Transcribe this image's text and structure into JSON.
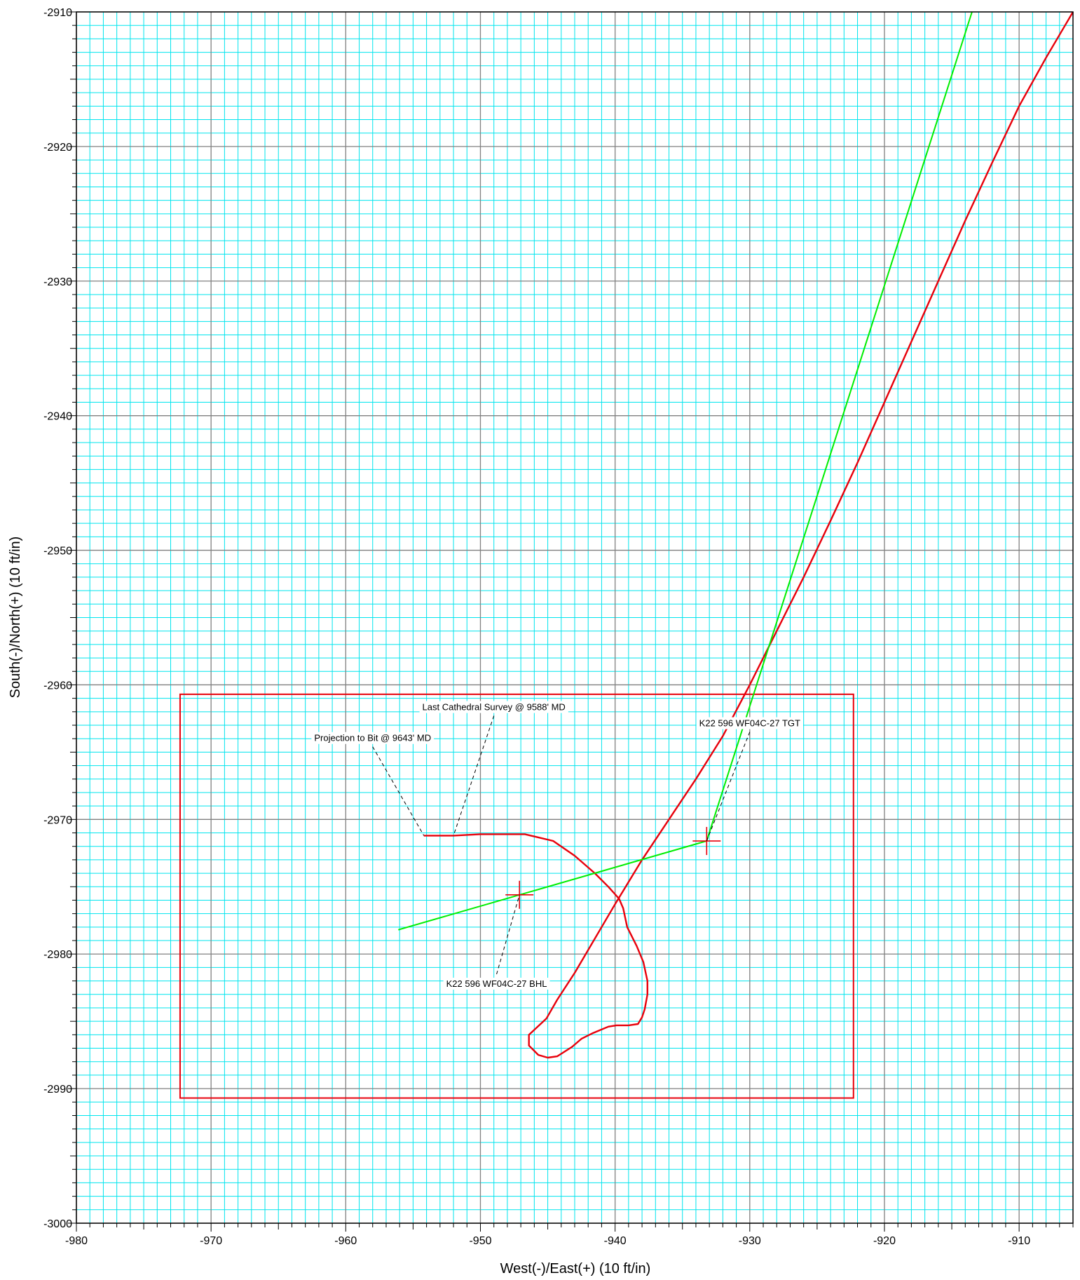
{
  "chart_data": {
    "type": "line",
    "title": "",
    "xlabel": "West(-)/East(+) (10 ft/in)",
    "ylabel": "South(-)/North(+) (10 ft/in)",
    "xlim": [
      -980,
      -906
    ],
    "ylim": [
      -3000,
      -2910
    ],
    "x_ticks": [
      -980,
      -970,
      -960,
      -950,
      -940,
      -930,
      -920,
      -910
    ],
    "y_ticks": [
      -2910,
      -2920,
      -2930,
      -2940,
      -2950,
      -2960,
      -2970,
      -2980,
      -2990,
      -3000
    ],
    "grid": true,
    "colors": {
      "minor_grid": "#00e5ee",
      "major_grid": "#808080",
      "actual": "#e8000b",
      "plan": "#00ee00",
      "box": "#e8000b",
      "target": "#e8000b",
      "leader": "#000000"
    },
    "series": [
      {
        "style": "actual",
        "points": [
          [
            -954.2,
            -2971.2
          ],
          [
            -952.0,
            -2971.2
          ],
          [
            -950.0,
            -2971.1
          ],
          [
            -948.0,
            -2971.1
          ],
          [
            -946.7,
            -2971.1
          ],
          [
            -944.6,
            -2971.6
          ],
          [
            -943.0,
            -2972.7
          ],
          [
            -941.5,
            -2974.0
          ],
          [
            -940.5,
            -2975.0
          ],
          [
            -939.7,
            -2975.9
          ],
          [
            -939.4,
            -2976.6
          ],
          [
            -939.1,
            -2978.0
          ],
          [
            -938.4,
            -2979.4
          ],
          [
            -937.9,
            -2980.6
          ],
          [
            -937.6,
            -2982.0
          ],
          [
            -937.6,
            -2983.0
          ],
          [
            -937.8,
            -2984.1
          ],
          [
            -938.0,
            -2984.7
          ],
          [
            -938.3,
            -2985.2
          ],
          [
            -939.0,
            -2985.3
          ],
          [
            -939.9,
            -2985.3
          ],
          [
            -940.5,
            -2985.4
          ],
          [
            -941.7,
            -2985.9
          ],
          [
            -942.5,
            -2986.3
          ],
          [
            -943.2,
            -2986.9
          ],
          [
            -944.3,
            -2987.6
          ],
          [
            -945.0,
            -2987.7
          ],
          [
            -945.7,
            -2987.5
          ],
          [
            -946.4,
            -2986.8
          ],
          [
            -946.4,
            -2986.0
          ],
          [
            -945.1,
            -2984.8
          ],
          [
            -944.3,
            -2983.4
          ],
          [
            -943.0,
            -2981.4
          ],
          [
            -942.0,
            -2979.7
          ],
          [
            -940.0,
            -2976.3
          ],
          [
            -938.0,
            -2973.0
          ],
          [
            -936.0,
            -2970.0
          ],
          [
            -934.0,
            -2967.0
          ],
          [
            -932.0,
            -2963.8
          ],
          [
            -930.0,
            -2960.0
          ],
          [
            -928.0,
            -2956.0
          ],
          [
            -926.0,
            -2952.0
          ],
          [
            -924.0,
            -2947.8
          ],
          [
            -922.0,
            -2943.5
          ],
          [
            -920.0,
            -2939.0
          ],
          [
            -918.0,
            -2934.5
          ],
          [
            -916.0,
            -2930.0
          ],
          [
            -914.0,
            -2925.5
          ],
          [
            -912.0,
            -2921.2
          ],
          [
            -910.0,
            -2917.0
          ],
          [
            -908.0,
            -2913.4
          ],
          [
            -906.0,
            -2910.0
          ]
        ]
      },
      {
        "style": "plan",
        "points": [
          [
            -913.5,
            -2910.0
          ],
          [
            -933.2,
            -2971.6
          ]
        ]
      },
      {
        "style": "plan",
        "points": [
          [
            -933.2,
            -2971.6
          ],
          [
            -956.1,
            -2978.2
          ]
        ]
      }
    ],
    "target_box": {
      "x": [
        -972.3,
        -922.3
      ],
      "y": [
        -2960.7,
        -2990.7
      ]
    },
    "targets": [
      {
        "x": -933.2,
        "y": -2971.6
      },
      {
        "x": -947.1,
        "y": -2975.6
      }
    ],
    "annotations": [
      {
        "text": "Last Cathedral Survey @ 9588' MD",
        "anchor": [
          -952.0,
          -2971.2
        ],
        "label_at": [
          -949.0,
          -2962.3
        ]
      },
      {
        "text": "Projection to Bit @ 9643' MD",
        "anchor": [
          -954.2,
          -2971.2
        ],
        "label_at": [
          -958.0,
          -2964.6
        ]
      },
      {
        "text": "K22 596 WF04C-27 TGT",
        "anchor": [
          -933.2,
          -2971.6
        ],
        "label_at": [
          -930.0,
          -2963.5
        ]
      },
      {
        "text": "K22 596 WF04C-27 BHL",
        "anchor": [
          -947.1,
          -2975.6
        ],
        "label_at": [
          -948.8,
          -2981.5
        ]
      }
    ]
  }
}
